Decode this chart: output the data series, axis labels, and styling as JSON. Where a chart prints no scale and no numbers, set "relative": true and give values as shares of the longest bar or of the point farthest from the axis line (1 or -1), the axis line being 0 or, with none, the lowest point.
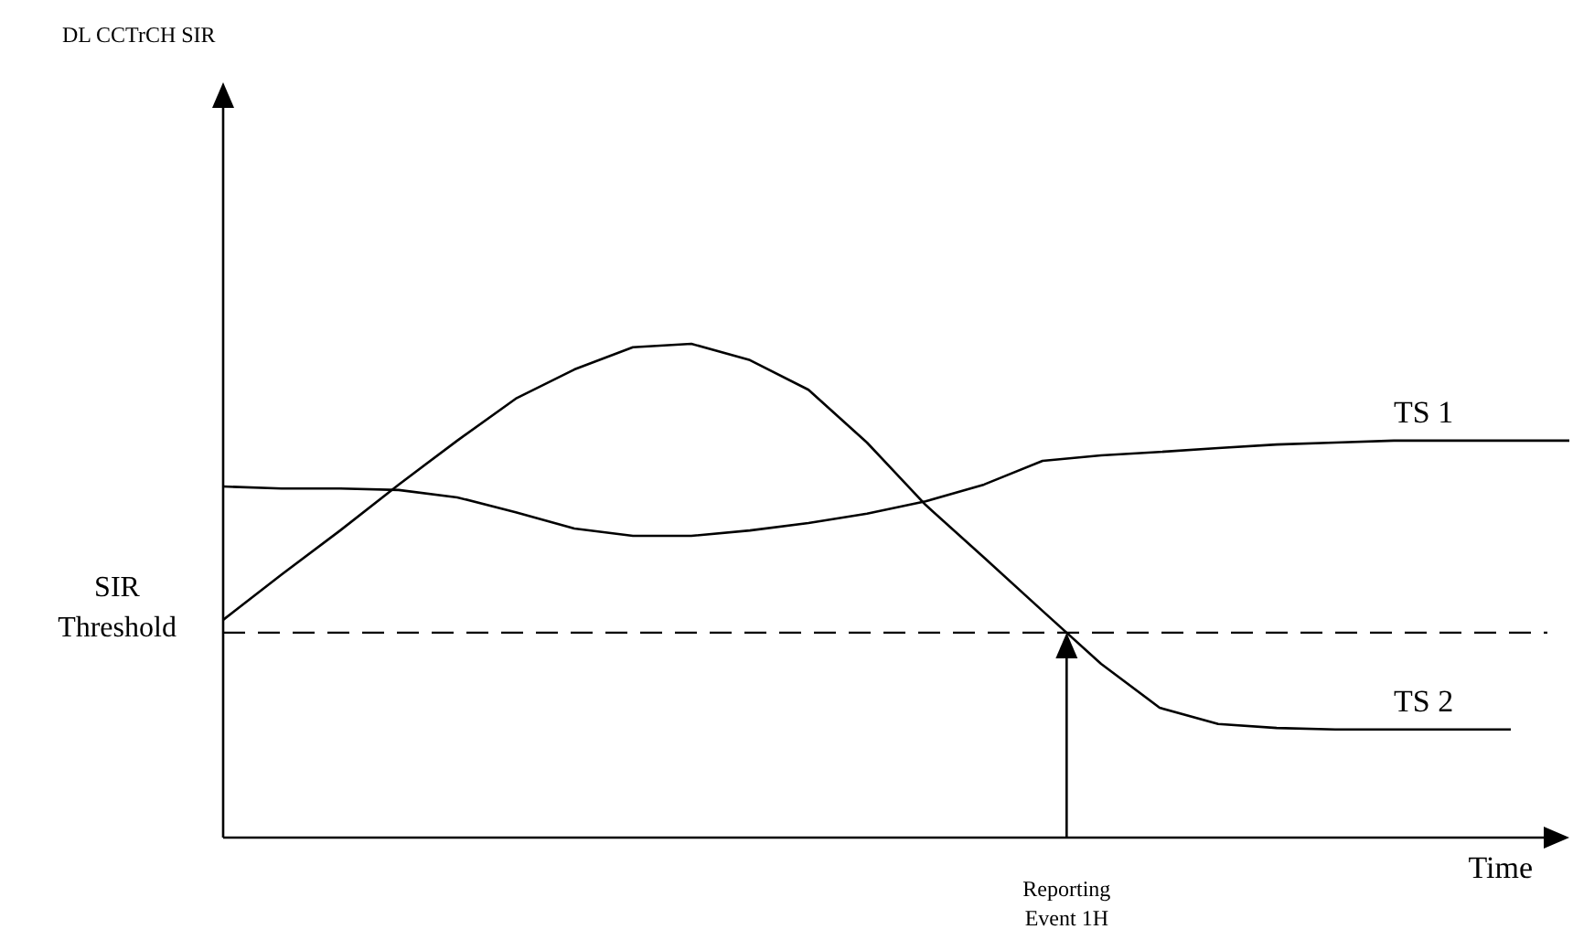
{
  "chart_data": {
    "type": "line",
    "relative": true,
    "xlabel": "Time",
    "marker": "none",
    "line_style": "solid",
    "annotations": [
      "DL CCTrCH SIR",
      "Reporting Event 1H"
    ],
    "categories": [
      null,
      null,
      null,
      null,
      null,
      null,
      null,
      null,
      null,
      null,
      null,
      null,
      null,
      null,
      null,
      null,
      null,
      null,
      null,
      null,
      null,
      null,
      null,
      null
    ],
    "series": [
      {
        "name": "TS 1",
        "color": "#000000",
        "values": [
          0.711,
          0.707,
          0.707,
          0.704,
          0.689,
          0.659,
          0.626,
          0.611,
          0.611,
          0.622,
          0.637,
          0.656,
          0.681,
          0.715,
          0.763,
          0.774,
          0.781,
          0.789,
          0.796,
          0.8,
          0.804,
          0.804,
          0.804,
          0.804
        ]
      },
      {
        "name": "TS 2",
        "color": "#000000",
        "values": [
          0.441,
          0.533,
          0.622,
          0.715,
          0.804,
          0.889,
          0.948,
          0.993,
          1.0,
          0.967,
          0.907,
          0.8,
          0.674,
          0.567,
          0.459,
          0.352,
          0.263,
          0.23,
          0.222,
          0.219,
          0.219,
          0.219,
          0.219,
          null
        ]
      }
    ],
    "ref_lines": [
      {
        "axis": "y",
        "value": 0.415,
        "label": "SIR Threshold",
        "line_style": "dashed",
        "color": "#000000"
      }
    ]
  }
}
